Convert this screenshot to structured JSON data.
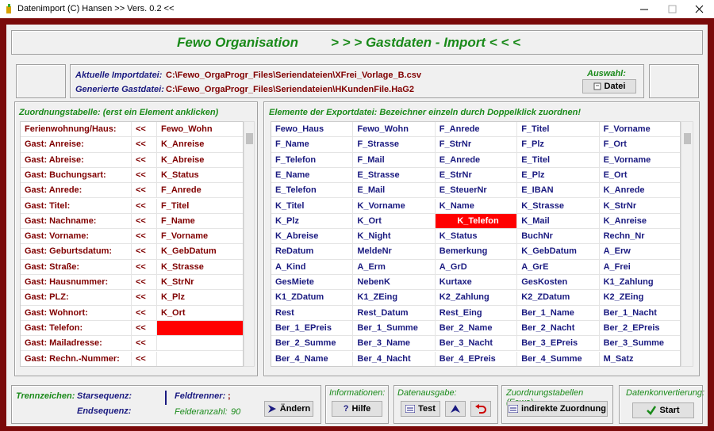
{
  "window": {
    "title": "Datenimport (C) Hansen  >> Vers. 0.2 <<"
  },
  "header": {
    "app": "Fewo Organisation",
    "subtitle": "> > > Gastdaten - Import < < <"
  },
  "files": {
    "import_label": "Aktuelle Importdatei:",
    "import_path": "C:\\Fewo_OrgaProgr_Files\\Seriendateien\\XFrei_Vorlage_B.csv",
    "output_label": "Generierte Gastdatei:",
    "output_path": "C:\\Fewo_OrgaProgr_Files\\Seriendateien\\HKundenFile.HaG2",
    "select_label": "Auswahl:",
    "select_button": "Datei"
  },
  "mapping": {
    "heading": "Zuordnungstabelle: (erst ein Element anklicken)",
    "selected_row": 13,
    "rows": [
      {
        "label": "Ferienwohnung/Haus:",
        "arrow": "<<",
        "value": "Fewo_Wohn"
      },
      {
        "label": "Gast: Anreise:",
        "arrow": "<<",
        "value": "K_Anreise"
      },
      {
        "label": "Gast: Abreise:",
        "arrow": "<<",
        "value": "K_Abreise"
      },
      {
        "label": "Gast: Buchungsart:",
        "arrow": "<<",
        "value": "K_Status"
      },
      {
        "label": "Gast: Anrede:",
        "arrow": "<<",
        "value": "F_Anrede"
      },
      {
        "label": "Gast: Titel:",
        "arrow": "<<",
        "value": "F_Titel"
      },
      {
        "label": "Gast: Nachname:",
        "arrow": "<<",
        "value": "F_Name"
      },
      {
        "label": "Gast: Vorname:",
        "arrow": "<<",
        "value": "F_Vorname"
      },
      {
        "label": "Gast: Geburtsdatum:",
        "arrow": "<<",
        "value": "K_GebDatum"
      },
      {
        "label": "Gast: Straße:",
        "arrow": "<<",
        "value": "K_Strasse"
      },
      {
        "label": "Gast: Hausnummer:",
        "arrow": "<<",
        "value": "K_StrNr"
      },
      {
        "label": "Gast: PLZ:",
        "arrow": "<<",
        "value": "K_Plz"
      },
      {
        "label": "Gast: Wohnort:",
        "arrow": "<<",
        "value": "K_Ort"
      },
      {
        "label": "Gast: Telefon:",
        "arrow": "<<"
      },
      {
        "label": "Gast: Mailadresse:",
        "arrow": "<<"
      },
      {
        "label": "Gast: Rechn.-Nummer:",
        "arrow": "<<"
      }
    ]
  },
  "export": {
    "heading": "Elemente der Exportdatei:  Bezeichner einzeln durch Doppelklick zuordnen!",
    "selected": [
      6,
      2
    ],
    "rows": [
      [
        "Fewo_Haus",
        "Fewo_Wohn",
        "F_Anrede",
        "F_Titel",
        "F_Vorname"
      ],
      [
        "F_Name",
        "F_Strasse",
        "F_StrNr",
        "F_Plz",
        "F_Ort"
      ],
      [
        "F_Telefon",
        "F_Mail",
        "E_Anrede",
        "E_Titel",
        "E_Vorname"
      ],
      [
        "E_Name",
        "E_Strasse",
        "E_StrNr",
        "E_Plz",
        "E_Ort"
      ],
      [
        "E_Telefon",
        "E_Mail",
        "E_SteuerNr",
        "E_IBAN",
        "K_Anrede"
      ],
      [
        "K_Titel",
        "K_Vorname",
        "K_Name",
        "K_Strasse",
        "K_StrNr"
      ],
      [
        "K_Plz",
        "K_Ort",
        "K_Telefon",
        "K_Mail",
        "K_Anreise"
      ],
      [
        "K_Abreise",
        "K_Night",
        "K_Status",
        "BuchNr",
        "Rechn_Nr"
      ],
      [
        "ReDatum",
        "MeldeNr",
        "Bemerkung",
        "K_GebDatum",
        "A_Erw"
      ],
      [
        "A_Kind",
        "A_Erm",
        "A_GrD",
        "A_GrE",
        "A_Frei"
      ],
      [
        "GesMiete",
        "NebenK",
        "Kurtaxe",
        "GesKosten",
        "K1_Zahlung"
      ],
      [
        "K1_ZDatum",
        "K1_ZEing",
        "K2_Zahlung",
        "K2_ZDatum",
        "K2_ZEing"
      ],
      [
        "Rest",
        "Rest_Datum",
        "Rest_Eing",
        "Ber_1_Name",
        "Ber_1_Nacht"
      ],
      [
        "Ber_1_EPreis",
        "Ber_1_Summe",
        "Ber_2_Name",
        "Ber_2_Nacht",
        "Ber_2_EPreis"
      ],
      [
        "Ber_2_Summe",
        "Ber_3_Name",
        "Ber_3_Nacht",
        "Ber_3_EPreis",
        "Ber_3_Summe"
      ],
      [
        "Ber_4_Name",
        "Ber_4_Nacht",
        "Ber_4_EPreis",
        "Ber_4_Summe",
        "M_Satz"
      ]
    ]
  },
  "footer": {
    "separators": {
      "heading": "Trennzeichen:",
      "start_label": "Starsequenz:",
      "end_label": "Endsequenz:",
      "field_sep_label": "Feldtrenner:",
      "field_sep": ";",
      "count_label": "Felderanzahl:",
      "count": "90",
      "button": "Ändern"
    },
    "info": {
      "heading": "Informationen:",
      "button": "Hilfe"
    },
    "output": {
      "heading": "Datenausgabe:",
      "button": "Test"
    },
    "tables": {
      "heading": "Zuordnungstabellen (Fewo)",
      "button": "indirekte Zuordnung"
    },
    "convert": {
      "heading": "Datenkonvertierung:",
      "button": "Start"
    }
  }
}
